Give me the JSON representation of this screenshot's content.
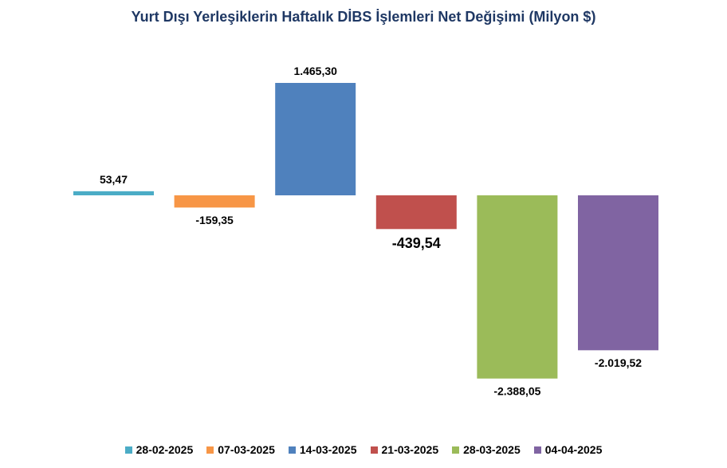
{
  "chart_data": {
    "type": "bar",
    "title": "Yurt Dışı Yerleşiklerin Haftalık DİBS İşlemleri Net Değişimi (Milyon $)",
    "xlabel": "",
    "ylabel": "",
    "categories": [
      "28-02-2025",
      "07-03-2025",
      "14-03-2025",
      "21-03-2025",
      "28-03-2025",
      "04-04-2025"
    ],
    "values": [
      53.47,
      -159.35,
      1465.3,
      -439.54,
      -2388.05,
      -2019.52
    ],
    "value_labels": [
      "53,47",
      "-159,35",
      "1.465,30",
      "-439,54",
      "-2.388,05",
      "-2.019,52"
    ],
    "colors": [
      "#4bacc6",
      "#f79646",
      "#4f81bd",
      "#c0504d",
      "#9bbb59",
      "#8064a2"
    ],
    "ylim": [
      -2388.05,
      1465.3
    ],
    "grid": false,
    "legend_position": "bottom"
  }
}
